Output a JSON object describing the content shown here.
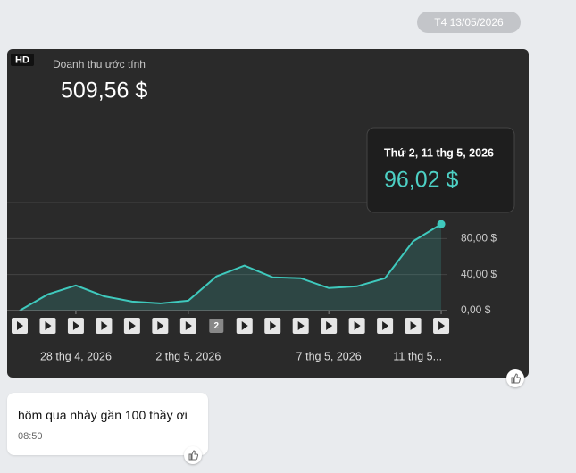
{
  "date_badge": "T4 13/05/2026",
  "card": {
    "badge": "HD",
    "title": "Doanh thu ước tính",
    "total": "509,56 $",
    "tooltip_date": "Thứ 2, 11 thg 5, 2026",
    "tooltip_value": "96,02 $"
  },
  "chart_data": {
    "type": "line",
    "categories": [
      null,
      null,
      "28 thg 4, 2026",
      null,
      null,
      null,
      "2 thg 5, 2026",
      null,
      null,
      null,
      null,
      "7 thg 5, 2026",
      null,
      null,
      null,
      "11 thg 5..."
    ],
    "values": [
      0,
      18,
      28,
      16,
      10,
      8,
      11,
      38,
      50,
      37,
      36,
      25,
      27,
      36,
      77,
      96.02
    ],
    "color": "#3fc9bd",
    "ylim": [
      0,
      120
    ],
    "yticks": [
      {
        "value": 0,
        "label": "0,00 $"
      },
      {
        "value": 40,
        "label": "40,00 $"
      },
      {
        "value": 80,
        "label": "80,00 $"
      }
    ],
    "grid": true,
    "annotation": "2"
  },
  "message": {
    "text": "hôm qua nhảy gần 100 thầy ơi",
    "time": "08:50"
  }
}
